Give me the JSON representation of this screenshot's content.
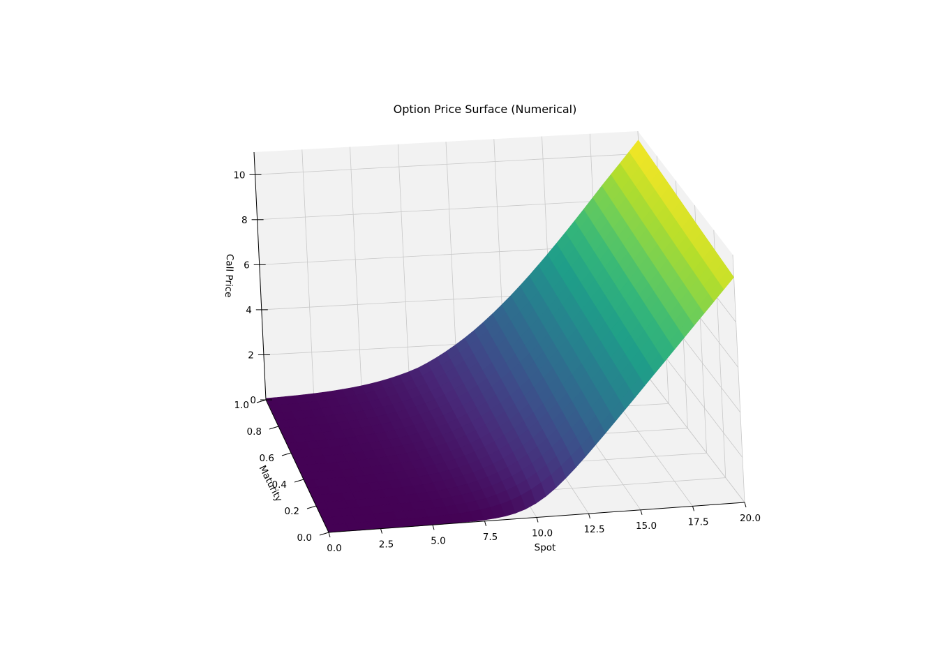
{
  "chart_data": {
    "type": "surface",
    "title": "Option Price Surface (Numerical)",
    "xlabel": "Spot",
    "ylabel": "Maturity",
    "zlabel": "Call Price",
    "x_ticks": [
      "0.0",
      "2.5",
      "5.0",
      "7.5",
      "10.0",
      "12.5",
      "15.0",
      "17.5",
      "20.0"
    ],
    "y_ticks": [
      "0.0",
      "0.2",
      "0.4",
      "0.6",
      "0.8",
      "1.0"
    ],
    "z_ticks": [
      "0",
      "2",
      "4",
      "6",
      "8",
      "10"
    ],
    "xlim": [
      0,
      20
    ],
    "ylim": [
      0,
      1
    ],
    "zlim": [
      0,
      11
    ],
    "strike": 10,
    "colormap": "viridis",
    "grid": true,
    "surface_corners": [
      {
        "spot": 0,
        "maturity": 0,
        "price": 0
      },
      {
        "spot": 0,
        "maturity": 1,
        "price": 0
      },
      {
        "spot": 20,
        "maturity": 0,
        "price": 10
      },
      {
        "spot": 20,
        "maturity": 1,
        "price": 10.6
      }
    ],
    "colors": {
      "pane": "#f2f2f2",
      "grid": "#c8c8c8",
      "axis": "#000000"
    }
  }
}
